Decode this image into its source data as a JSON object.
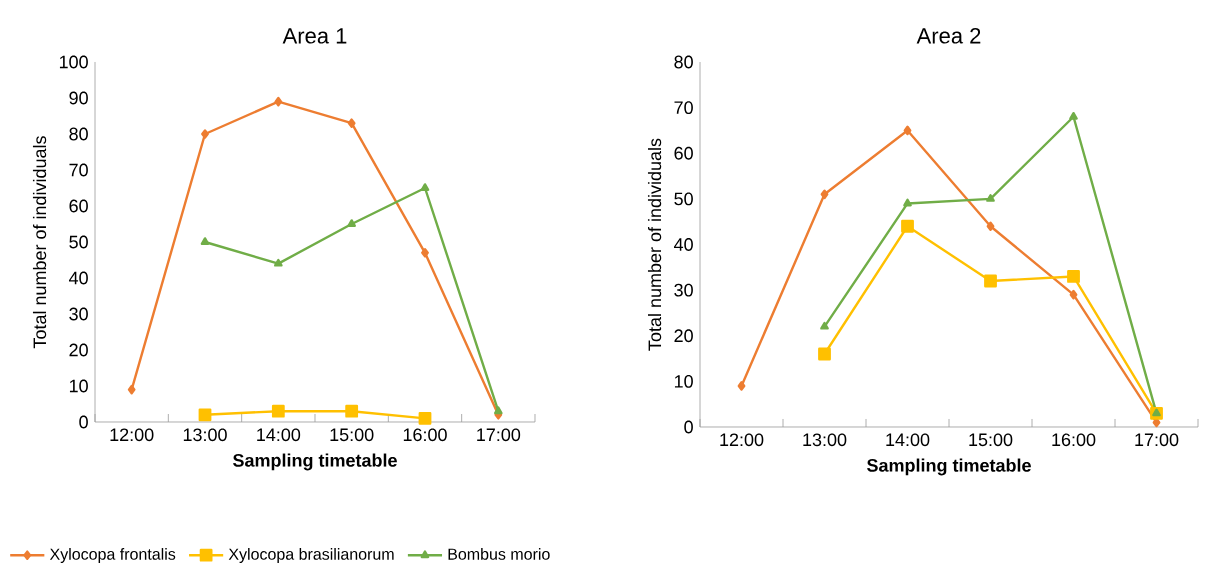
{
  "chart_data": [
    {
      "type": "line",
      "title": "Area 1",
      "xlabel": "Sampling timetable",
      "ylabel": "Total number of individuals",
      "categories": [
        "12:00",
        "13:00",
        "14:00",
        "15:00",
        "16:00",
        "17:00"
      ],
      "ylim": [
        0,
        100
      ],
      "yticks": [
        0,
        10,
        20,
        30,
        40,
        50,
        60,
        70,
        80,
        90,
        100
      ],
      "legend": "bottom",
      "series": [
        {
          "name": "Xylocopa frontalis",
          "color": "#ed7d31",
          "marker": "diamond",
          "values": [
            9,
            80,
            89,
            83,
            47,
            2
          ]
        },
        {
          "name": "Xylocopa brasilianorum",
          "color": "#ffc000",
          "marker": "square",
          "values": [
            null,
            2,
            3,
            3,
            1,
            null
          ]
        },
        {
          "name": "Bombus morio",
          "color": "#70ad47",
          "marker": "triangle",
          "values": [
            null,
            50,
            44,
            55,
            65,
            3
          ]
        }
      ]
    },
    {
      "type": "line",
      "title": "Area 2",
      "xlabel": "Sampling timetable",
      "ylabel": "Total number of individuals",
      "categories": [
        "12:00",
        "13:00",
        "14:00",
        "15:00",
        "16:00",
        "17:00"
      ],
      "ylim": [
        0,
        80
      ],
      "yticks": [
        0,
        10,
        20,
        30,
        40,
        50,
        60,
        70,
        80
      ],
      "series": [
        {
          "color": "#ed7d31",
          "marker": "diamond",
          "values": [
            9,
            51,
            65,
            44,
            29,
            1
          ]
        },
        {
          "color": "#ffc000",
          "marker": "square",
          "values": [
            null,
            16,
            44,
            32,
            33,
            3
          ]
        },
        {
          "color": "#70ad47",
          "marker": "triangle",
          "values": [
            null,
            22,
            49,
            50,
            68,
            3
          ]
        }
      ]
    }
  ]
}
